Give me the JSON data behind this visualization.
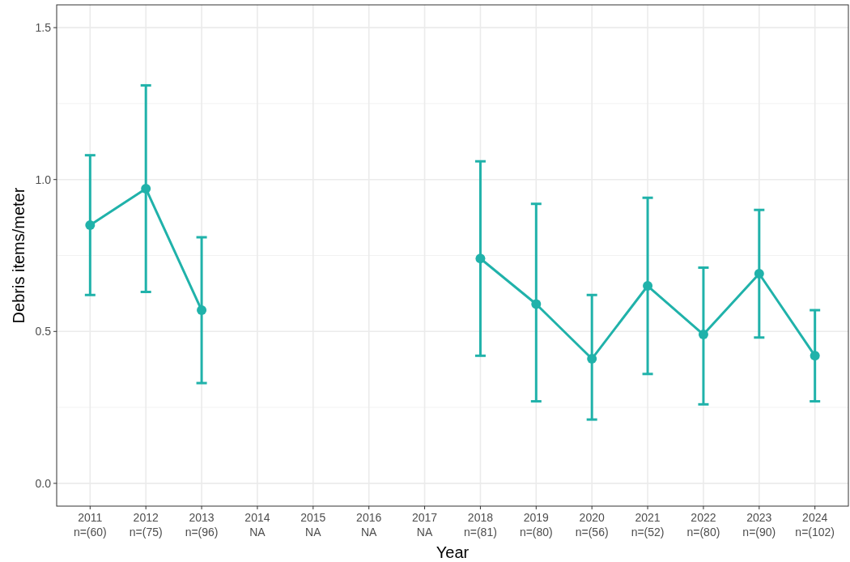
{
  "chart_data": {
    "type": "line",
    "xlabel": "Year",
    "ylabel": "Debris items/meter",
    "categories": [
      "2011\nn=(60)",
      "2012\nn=(75)",
      "2013\nn=(96)",
      "2014\nNA",
      "2015\nNA",
      "2016\nNA",
      "2017\nNA",
      "2018\nn=(81)",
      "2019\nn=(80)",
      "2020\nn=(56)",
      "2021\nn=(52)",
      "2022\nn=(80)",
      "2023\nn=(90)",
      "2024\nn=(102)"
    ],
    "series": [
      {
        "color": "#20b2aa",
        "values": [
          0.85,
          0.97,
          0.57,
          null,
          null,
          null,
          null,
          0.74,
          0.59,
          0.41,
          0.65,
          0.49,
          0.69,
          0.42
        ],
        "errors": [
          [
            0.62,
            1.08
          ],
          [
            0.63,
            1.31
          ],
          [
            0.33,
            0.81
          ],
          null,
          null,
          null,
          null,
          [
            0.42,
            1.06
          ],
          [
            0.27,
            0.92
          ],
          [
            0.21,
            0.62
          ],
          [
            0.36,
            0.94
          ],
          [
            0.26,
            0.71
          ],
          [
            0.48,
            0.9
          ],
          [
            0.27,
            0.57
          ]
        ]
      }
    ],
    "ylim": [
      -0.075,
      1.575
    ],
    "yticks": [
      {
        "value": 0,
        "label": "0.0"
      },
      {
        "value": 0.5,
        "label": "0.5"
      },
      {
        "value": 1,
        "label": "1.0"
      },
      {
        "value": 1.5,
        "label": "1.5"
      }
    ],
    "grid": true,
    "marker": "circle",
    "line_style": "solid"
  }
}
